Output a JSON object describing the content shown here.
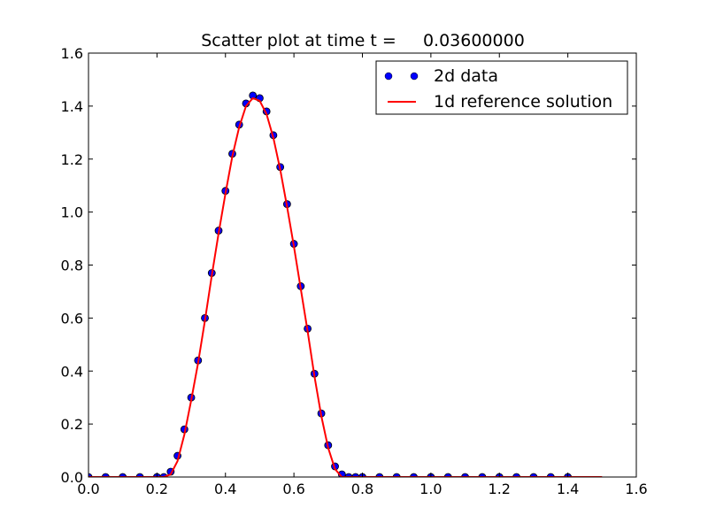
{
  "chart_data": {
    "type": "scatter",
    "title": "Scatter plot at time t =     0.03600000",
    "xlabel": "",
    "ylabel": "",
    "xlim": [
      0.0,
      1.6
    ],
    "ylim": [
      0.0,
      1.6
    ],
    "x_ticks": [
      "0.0",
      "0.2",
      "0.4",
      "0.6",
      "0.8",
      "1.0",
      "1.2",
      "1.4",
      "1.6"
    ],
    "y_ticks": [
      "0.0",
      "0.2",
      "0.4",
      "0.6",
      "0.8",
      "1.0",
      "1.2",
      "1.4",
      "1.6"
    ],
    "grid": false,
    "legend_position": "top-right",
    "series": [
      {
        "name": "2d data",
        "kind": "scatter",
        "color": "#0000ff",
        "marker_edge_color": "#000000",
        "x": [
          0.0,
          0.05,
          0.1,
          0.15,
          0.2,
          0.22,
          0.24,
          0.26,
          0.28,
          0.3,
          0.32,
          0.34,
          0.36,
          0.38,
          0.4,
          0.42,
          0.44,
          0.46,
          0.48,
          0.5,
          0.52,
          0.54,
          0.56,
          0.58,
          0.6,
          0.62,
          0.64,
          0.66,
          0.68,
          0.7,
          0.72,
          0.74,
          0.76,
          0.78,
          0.8,
          0.85,
          0.9,
          0.95,
          1.0,
          1.05,
          1.1,
          1.15,
          1.2,
          1.25,
          1.3,
          1.35,
          1.4
        ],
        "y": [
          0.0,
          0.0,
          0.0,
          0.0,
          0.0,
          0.0,
          0.02,
          0.08,
          0.18,
          0.3,
          0.44,
          0.6,
          0.77,
          0.93,
          1.08,
          1.22,
          1.33,
          1.41,
          1.44,
          1.43,
          1.38,
          1.29,
          1.17,
          1.03,
          0.88,
          0.72,
          0.56,
          0.39,
          0.24,
          0.12,
          0.04,
          0.01,
          0.0,
          0.0,
          0.0,
          0.0,
          0.0,
          0.0,
          0.0,
          0.0,
          0.0,
          0.0,
          0.0,
          0.0,
          0.0,
          0.0,
          0.0
        ]
      },
      {
        "name": "1d reference solution",
        "kind": "line",
        "color": "#ff0000",
        "x": [
          0.0,
          0.1,
          0.2,
          0.22,
          0.24,
          0.26,
          0.28,
          0.3,
          0.32,
          0.34,
          0.36,
          0.38,
          0.4,
          0.42,
          0.44,
          0.46,
          0.48,
          0.5,
          0.52,
          0.54,
          0.56,
          0.58,
          0.6,
          0.62,
          0.64,
          0.66,
          0.68,
          0.7,
          0.72,
          0.74,
          0.76,
          0.78,
          0.8,
          1.0,
          1.2,
          1.4,
          1.5
        ],
        "y": [
          0.0,
          0.0,
          0.0,
          0.0,
          0.01,
          0.06,
          0.16,
          0.29,
          0.43,
          0.59,
          0.76,
          0.92,
          1.07,
          1.21,
          1.32,
          1.4,
          1.43,
          1.42,
          1.37,
          1.28,
          1.16,
          1.02,
          0.87,
          0.71,
          0.55,
          0.38,
          0.23,
          0.11,
          0.03,
          0.0,
          0.0,
          0.0,
          0.0,
          0.0,
          0.0,
          0.0,
          0.0
        ]
      }
    ]
  }
}
